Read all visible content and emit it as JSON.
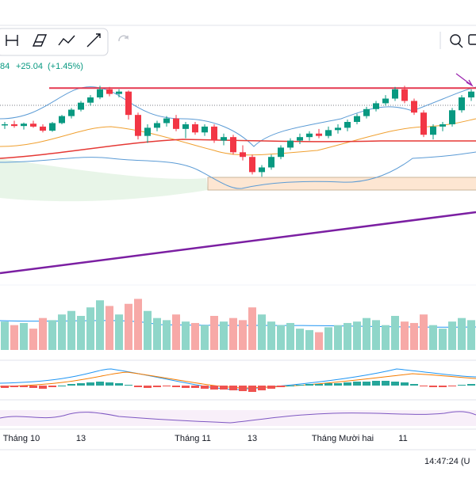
{
  "header": {
    "price": "84",
    "change": "+25.04",
    "change_pct": "(+1.45%)"
  },
  "chart_data": {
    "type": "candlestick",
    "ylim": [
      1450,
      1830
    ],
    "up_color": "#089981",
    "down_color": "#f23645",
    "ohlc": [
      [
        1710,
        1716,
        1704,
        1712
      ],
      [
        1712,
        1718,
        1706,
        1709
      ],
      [
        1709,
        1715,
        1703,
        1713
      ],
      [
        1713,
        1718,
        1706,
        1708
      ],
      [
        1708,
        1712,
        1698,
        1701
      ],
      [
        1701,
        1716,
        1699,
        1714
      ],
      [
        1714,
        1728,
        1712,
        1726
      ],
      [
        1726,
        1740,
        1722,
        1737
      ],
      [
        1737,
        1752,
        1734,
        1749
      ],
      [
        1749,
        1762,
        1744,
        1758
      ],
      [
        1758,
        1778,
        1755,
        1772
      ],
      [
        1772,
        1776,
        1760,
        1764
      ],
      [
        1764,
        1772,
        1758,
        1768
      ],
      [
        1768,
        1770,
        1720,
        1728
      ],
      [
        1728,
        1732,
        1686,
        1692
      ],
      [
        1692,
        1712,
        1680,
        1706
      ],
      [
        1706,
        1718,
        1700,
        1714
      ],
      [
        1714,
        1726,
        1708,
        1722
      ],
      [
        1722,
        1728,
        1700,
        1704
      ],
      [
        1704,
        1716,
        1688,
        1712
      ],
      [
        1712,
        1716,
        1694,
        1698
      ],
      [
        1698,
        1712,
        1692,
        1708
      ],
      [
        1708,
        1712,
        1680,
        1684
      ],
      [
        1684,
        1696,
        1676,
        1690
      ],
      [
        1690,
        1694,
        1660,
        1664
      ],
      [
        1664,
        1676,
        1650,
        1656
      ],
      [
        1656,
        1660,
        1626,
        1630
      ],
      [
        1630,
        1642,
        1622,
        1638
      ],
      [
        1638,
        1660,
        1634,
        1656
      ],
      [
        1656,
        1676,
        1652,
        1672
      ],
      [
        1672,
        1688,
        1668,
        1684
      ],
      [
        1684,
        1696,
        1678,
        1690
      ],
      [
        1690,
        1700,
        1684,
        1696
      ],
      [
        1696,
        1704,
        1688,
        1692
      ],
      [
        1692,
        1708,
        1688,
        1702
      ],
      [
        1702,
        1712,
        1696,
        1706
      ],
      [
        1706,
        1720,
        1700,
        1716
      ],
      [
        1716,
        1730,
        1712,
        1726
      ],
      [
        1726,
        1742,
        1722,
        1738
      ],
      [
        1738,
        1752,
        1734,
        1748
      ],
      [
        1748,
        1762,
        1744,
        1756
      ],
      [
        1756,
        1776,
        1752,
        1772
      ],
      [
        1772,
        1778,
        1748,
        1752
      ],
      [
        1752,
        1756,
        1728,
        1732
      ],
      [
        1732,
        1736,
        1690,
        1694
      ],
      [
        1694,
        1712,
        1686,
        1708
      ],
      [
        1708,
        1716,
        1700,
        1712
      ],
      [
        1712,
        1740,
        1708,
        1736
      ],
      [
        1736,
        1762,
        1732,
        1758
      ],
      [
        1758,
        1772,
        1752,
        1768
      ]
    ],
    "volume": [
      40,
      35,
      38,
      30,
      45,
      42,
      50,
      55,
      48,
      60,
      70,
      62,
      50,
      65,
      72,
      55,
      45,
      42,
      50,
      40,
      38,
      35,
      48,
      40,
      45,
      42,
      60,
      50,
      40,
      35,
      38,
      30,
      28,
      25,
      32,
      35,
      38,
      40,
      45,
      42,
      35,
      48,
      40,
      38,
      50,
      35,
      30,
      40,
      45,
      42
    ],
    "volume_ylim": [
      0,
      100
    ],
    "macd_hist": [
      -3,
      -2,
      -2,
      -3,
      -4,
      -2,
      0,
      2,
      3,
      4,
      5,
      4,
      3,
      1,
      -2,
      -3,
      -2,
      -1,
      -2,
      -3,
      -3,
      -4,
      -5,
      -5,
      -6,
      -7,
      -8,
      -6,
      -4,
      -2,
      0,
      1,
      2,
      2,
      3,
      3,
      4,
      5,
      5,
      6,
      6,
      5,
      4,
      2,
      -1,
      -2,
      -2,
      -1,
      1,
      2
    ],
    "macd_ylim": [
      -12,
      12
    ],
    "resistance": 1774,
    "x_labels": [
      "Tháng 10",
      "13",
      "Tháng 11",
      "13",
      "Tháng Mười hai",
      "11"
    ]
  },
  "footer": {
    "time": "14:47:24 (U"
  }
}
